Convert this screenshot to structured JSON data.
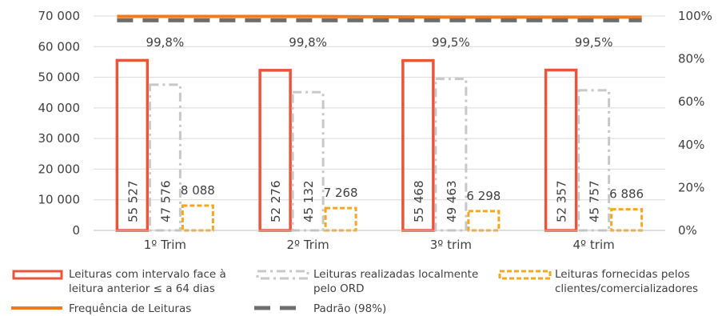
{
  "chart_data": {
    "type": "bar",
    "categories": [
      "1º Trim",
      "2º Trim",
      "3º trim",
      "4º trim"
    ],
    "series": [
      {
        "name": "Leituras com intervalo face à leitura anterior ≤ a 64 dias",
        "values": [
          55527,
          52276,
          55468,
          52357
        ],
        "labels": [
          "55 527",
          "52 276",
          "55 468",
          "52 357"
        ],
        "axis": "left",
        "style": "bar-outline",
        "color": "#e8553a"
      },
      {
        "name": "Leituras realizadas localmente pelo ORD",
        "values": [
          47576,
          45132,
          49463,
          45757
        ],
        "labels": [
          "47 576",
          "45 132",
          "49 463",
          "45 757"
        ],
        "axis": "left",
        "style": "bar-dashdot",
        "color": "#c8c8c8"
      },
      {
        "name": "Leituras fornecidas pelos clientes/comercializadores",
        "values": [
          8088,
          7268,
          6298,
          6886
        ],
        "labels": [
          "8 088",
          "7 268",
          "6 298",
          "6 886"
        ],
        "axis": "left",
        "style": "bar-dashed",
        "color": "#f5a623"
      },
      {
        "name": "Frequência de Leituras",
        "values": [
          99.8,
          99.8,
          99.5,
          99.5
        ],
        "labels": [
          "99,8%",
          "99,8%",
          "99,5%",
          "99,5%"
        ],
        "axis": "right",
        "style": "line",
        "color": "#f07b1e"
      },
      {
        "name": "Padrão (98%)",
        "values": [
          98,
          98,
          98,
          98
        ],
        "axis": "right",
        "style": "dashed-line",
        "color": "#6e6e6e"
      }
    ],
    "legend": [
      {
        "line1": "Leituras com intervalo face à",
        "line2": "leitura anterior ≤ a 64 dias"
      },
      {
        "line1": "Leituras realizadas localmente",
        "line2": "pelo ORD"
      },
      {
        "line1": "Leituras fornecidas pelos",
        "line2": "clientes/comercializadores"
      },
      {
        "line1": "Frequência de Leituras",
        "line2": ""
      },
      {
        "line1": "Padrão (98%)",
        "line2": ""
      }
    ],
    "y_left": {
      "min": 0,
      "max": 70000,
      "ticks": [
        0,
        10000,
        20000,
        30000,
        40000,
        50000,
        60000,
        70000
      ],
      "tick_labels": [
        "0",
        "10 000",
        "20 000",
        "30 000",
        "40 000",
        "50 000",
        "60 000",
        "70 000"
      ]
    },
    "y_right": {
      "min": 0,
      "max": 100,
      "ticks": [
        0,
        20,
        40,
        60,
        80,
        100
      ],
      "tick_labels": [
        "0%",
        "20%",
        "40%",
        "60%",
        "80%",
        "100%"
      ]
    },
    "legend_position": "bottom",
    "grid": true
  }
}
